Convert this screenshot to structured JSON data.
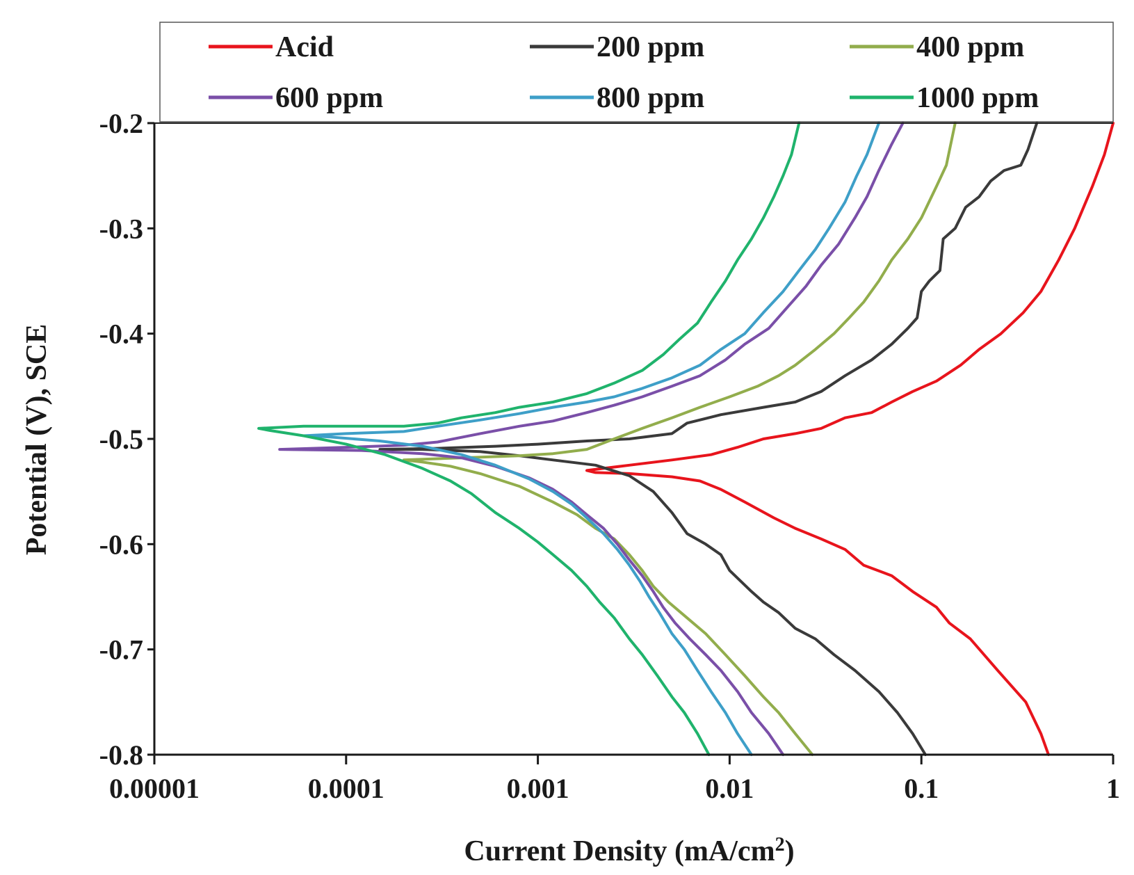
{
  "chart_data": {
    "type": "line",
    "title": "",
    "xlabel": "Current Density (mA/cm",
    "xlabel_sup": "2",
    "xlabel_close": ")",
    "ylabel": "Potential (V), SCE",
    "xscale": "log",
    "xlim": [
      1e-05,
      1
    ],
    "ylim": [
      -0.8,
      -0.2
    ],
    "x_ticks": [
      1e-05,
      0.0001,
      0.001,
      0.01,
      0.1,
      1
    ],
    "x_tick_labels": [
      "0.00001",
      "0.0001",
      "0.001",
      "0.01",
      "0.1",
      "1"
    ],
    "y_ticks": [
      -0.2,
      -0.3,
      -0.4,
      -0.5,
      -0.6,
      -0.7,
      -0.8
    ],
    "y_tick_labels": [
      "-0.2",
      "-0.3",
      "-0.4",
      "-0.5",
      "-0.6",
      "-0.7",
      "-0.8"
    ],
    "grid": false,
    "legend_position": "top",
    "series": [
      {
        "name": "Acid",
        "color": "#e8141c",
        "points": [
          [
            0.46,
            -0.8
          ],
          [
            0.42,
            -0.78
          ],
          [
            0.35,
            -0.75
          ],
          [
            0.25,
            -0.72
          ],
          [
            0.18,
            -0.69
          ],
          [
            0.14,
            -0.675
          ],
          [
            0.12,
            -0.66
          ],
          [
            0.09,
            -0.645
          ],
          [
            0.07,
            -0.63
          ],
          [
            0.05,
            -0.62
          ],
          [
            0.04,
            -0.605
          ],
          [
            0.03,
            -0.595
          ],
          [
            0.022,
            -0.585
          ],
          [
            0.017,
            -0.575
          ],
          [
            0.012,
            -0.56
          ],
          [
            0.009,
            -0.548
          ],
          [
            0.007,
            -0.54
          ],
          [
            0.005,
            -0.536
          ],
          [
            0.003,
            -0.533
          ],
          [
            0.002,
            -0.532
          ],
          [
            0.0018,
            -0.53
          ],
          [
            0.0022,
            -0.528
          ],
          [
            0.003,
            -0.525
          ],
          [
            0.005,
            -0.52
          ],
          [
            0.008,
            -0.515
          ],
          [
            0.011,
            -0.508
          ],
          [
            0.015,
            -0.5
          ],
          [
            0.022,
            -0.495
          ],
          [
            0.03,
            -0.49
          ],
          [
            0.04,
            -0.48
          ],
          [
            0.055,
            -0.475
          ],
          [
            0.07,
            -0.465
          ],
          [
            0.09,
            -0.455
          ],
          [
            0.12,
            -0.445
          ],
          [
            0.16,
            -0.43
          ],
          [
            0.2,
            -0.415
          ],
          [
            0.26,
            -0.4
          ],
          [
            0.34,
            -0.38
          ],
          [
            0.42,
            -0.36
          ],
          [
            0.52,
            -0.33
          ],
          [
            0.63,
            -0.3
          ],
          [
            0.78,
            -0.26
          ],
          [
            0.9,
            -0.23
          ],
          [
            1.0,
            -0.2
          ]
        ]
      },
      {
        "name": "200 ppm",
        "color": "#3a3a3a",
        "points": [
          [
            0.105,
            -0.8
          ],
          [
            0.09,
            -0.78
          ],
          [
            0.075,
            -0.76
          ],
          [
            0.06,
            -0.74
          ],
          [
            0.045,
            -0.72
          ],
          [
            0.035,
            -0.705
          ],
          [
            0.028,
            -0.69
          ],
          [
            0.022,
            -0.68
          ],
          [
            0.018,
            -0.665
          ],
          [
            0.015,
            -0.655
          ],
          [
            0.013,
            -0.645
          ],
          [
            0.01,
            -0.625
          ],
          [
            0.009,
            -0.61
          ],
          [
            0.0075,
            -0.6
          ],
          [
            0.006,
            -0.59
          ],
          [
            0.005,
            -0.57
          ],
          [
            0.004,
            -0.55
          ],
          [
            0.003,
            -0.535
          ],
          [
            0.002,
            -0.525
          ],
          [
            0.0012,
            -0.52
          ],
          [
            0.0008,
            -0.516
          ],
          [
            0.0005,
            -0.512
          ],
          [
            0.00025,
            -0.51
          ],
          [
            0.00015,
            -0.51
          ],
          [
            0.0003,
            -0.509
          ],
          [
            0.0006,
            -0.507
          ],
          [
            0.001,
            -0.505
          ],
          [
            0.0018,
            -0.502
          ],
          [
            0.003,
            -0.5
          ],
          [
            0.005,
            -0.495
          ],
          [
            0.006,
            -0.485
          ],
          [
            0.009,
            -0.477
          ],
          [
            0.015,
            -0.47
          ],
          [
            0.022,
            -0.465
          ],
          [
            0.03,
            -0.455
          ],
          [
            0.04,
            -0.44
          ],
          [
            0.055,
            -0.425
          ],
          [
            0.07,
            -0.41
          ],
          [
            0.085,
            -0.395
          ],
          [
            0.095,
            -0.385
          ],
          [
            0.1,
            -0.36
          ],
          [
            0.11,
            -0.35
          ],
          [
            0.125,
            -0.34
          ],
          [
            0.13,
            -0.31
          ],
          [
            0.15,
            -0.3
          ],
          [
            0.17,
            -0.28
          ],
          [
            0.2,
            -0.27
          ],
          [
            0.23,
            -0.255
          ],
          [
            0.27,
            -0.245
          ],
          [
            0.33,
            -0.24
          ],
          [
            0.36,
            -0.225
          ],
          [
            0.4,
            -0.2
          ]
        ]
      },
      {
        "name": "400 ppm",
        "color": "#92ad4c",
        "points": [
          [
            0.027,
            -0.8
          ],
          [
            0.022,
            -0.78
          ],
          [
            0.018,
            -0.76
          ],
          [
            0.015,
            -0.745
          ],
          [
            0.012,
            -0.725
          ],
          [
            0.0095,
            -0.705
          ],
          [
            0.0075,
            -0.685
          ],
          [
            0.006,
            -0.67
          ],
          [
            0.0048,
            -0.655
          ],
          [
            0.004,
            -0.64
          ],
          [
            0.0035,
            -0.625
          ],
          [
            0.003,
            -0.61
          ],
          [
            0.0025,
            -0.595
          ],
          [
            0.002,
            -0.585
          ],
          [
            0.0016,
            -0.572
          ],
          [
            0.0012,
            -0.56
          ],
          [
            0.0008,
            -0.545
          ],
          [
            0.0005,
            -0.533
          ],
          [
            0.00035,
            -0.526
          ],
          [
            0.00025,
            -0.522
          ],
          [
            0.0002,
            -0.52
          ],
          [
            0.0004,
            -0.518
          ],
          [
            0.0008,
            -0.516
          ],
          [
            0.0012,
            -0.514
          ],
          [
            0.0018,
            -0.51
          ],
          [
            0.0025,
            -0.5
          ],
          [
            0.0035,
            -0.49
          ],
          [
            0.005,
            -0.48
          ],
          [
            0.007,
            -0.47
          ],
          [
            0.01,
            -0.46
          ],
          [
            0.014,
            -0.45
          ],
          [
            0.018,
            -0.44
          ],
          [
            0.022,
            -0.43
          ],
          [
            0.028,
            -0.415
          ],
          [
            0.035,
            -0.4
          ],
          [
            0.042,
            -0.385
          ],
          [
            0.05,
            -0.37
          ],
          [
            0.06,
            -0.35
          ],
          [
            0.07,
            -0.33
          ],
          [
            0.085,
            -0.31
          ],
          [
            0.1,
            -0.29
          ],
          [
            0.12,
            -0.26
          ],
          [
            0.135,
            -0.24
          ],
          [
            0.15,
            -0.2
          ]
        ]
      },
      {
        "name": "600 ppm",
        "color": "#7a4fa8",
        "points": [
          [
            0.019,
            -0.8
          ],
          [
            0.016,
            -0.78
          ],
          [
            0.013,
            -0.76
          ],
          [
            0.011,
            -0.74
          ],
          [
            0.009,
            -0.72
          ],
          [
            0.0075,
            -0.705
          ],
          [
            0.0062,
            -0.69
          ],
          [
            0.0052,
            -0.675
          ],
          [
            0.0045,
            -0.66
          ],
          [
            0.004,
            -0.645
          ],
          [
            0.0035,
            -0.63
          ],
          [
            0.003,
            -0.615
          ],
          [
            0.0026,
            -0.6
          ],
          [
            0.0022,
            -0.585
          ],
          [
            0.0018,
            -0.572
          ],
          [
            0.0015,
            -0.56
          ],
          [
            0.0012,
            -0.548
          ],
          [
            0.0009,
            -0.537
          ],
          [
            0.0006,
            -0.526
          ],
          [
            0.0004,
            -0.518
          ],
          [
            0.00025,
            -0.514
          ],
          [
            0.00012,
            -0.511
          ],
          [
            4.5e-05,
            -0.51
          ],
          [
            0.0001,
            -0.508
          ],
          [
            0.0002,
            -0.506
          ],
          [
            0.0003,
            -0.503
          ],
          [
            0.0005,
            -0.495
          ],
          [
            0.0008,
            -0.488
          ],
          [
            0.0012,
            -0.483
          ],
          [
            0.0018,
            -0.475
          ],
          [
            0.0025,
            -0.468
          ],
          [
            0.0035,
            -0.46
          ],
          [
            0.005,
            -0.45
          ],
          [
            0.007,
            -0.44
          ],
          [
            0.0095,
            -0.425
          ],
          [
            0.012,
            -0.41
          ],
          [
            0.016,
            -0.395
          ],
          [
            0.02,
            -0.375
          ],
          [
            0.025,
            -0.355
          ],
          [
            0.03,
            -0.335
          ],
          [
            0.037,
            -0.315
          ],
          [
            0.045,
            -0.29
          ],
          [
            0.052,
            -0.27
          ],
          [
            0.06,
            -0.245
          ],
          [
            0.07,
            -0.22
          ],
          [
            0.08,
            -0.2
          ]
        ]
      },
      {
        "name": "800 ppm",
        "color": "#3e9fc8",
        "points": [
          [
            0.013,
            -0.8
          ],
          [
            0.011,
            -0.78
          ],
          [
            0.0095,
            -0.76
          ],
          [
            0.008,
            -0.74
          ],
          [
            0.0068,
            -0.72
          ],
          [
            0.0058,
            -0.7
          ],
          [
            0.005,
            -0.685
          ],
          [
            0.0043,
            -0.665
          ],
          [
            0.0038,
            -0.65
          ],
          [
            0.0034,
            -0.635
          ],
          [
            0.003,
            -0.62
          ],
          [
            0.0026,
            -0.605
          ],
          [
            0.0022,
            -0.59
          ],
          [
            0.0018,
            -0.575
          ],
          [
            0.0015,
            -0.562
          ],
          [
            0.0012,
            -0.55
          ],
          [
            0.0009,
            -0.538
          ],
          [
            0.0006,
            -0.525
          ],
          [
            0.0004,
            -0.515
          ],
          [
            0.00025,
            -0.507
          ],
          [
            0.00015,
            -0.502
          ],
          [
            8e-05,
            -0.498
          ],
          [
            6e-05,
            -0.497
          ],
          [
            0.0001,
            -0.495
          ],
          [
            0.0002,
            -0.493
          ],
          [
            0.0003,
            -0.488
          ],
          [
            0.0005,
            -0.482
          ],
          [
            0.0008,
            -0.476
          ],
          [
            0.0012,
            -0.47
          ],
          [
            0.0018,
            -0.465
          ],
          [
            0.0025,
            -0.46
          ],
          [
            0.0035,
            -0.452
          ],
          [
            0.005,
            -0.442
          ],
          [
            0.007,
            -0.43
          ],
          [
            0.009,
            -0.415
          ],
          [
            0.012,
            -0.4
          ],
          [
            0.015,
            -0.38
          ],
          [
            0.019,
            -0.36
          ],
          [
            0.023,
            -0.34
          ],
          [
            0.028,
            -0.32
          ],
          [
            0.033,
            -0.3
          ],
          [
            0.04,
            -0.275
          ],
          [
            0.046,
            -0.25
          ],
          [
            0.052,
            -0.23
          ],
          [
            0.06,
            -0.2
          ]
        ]
      },
      {
        "name": "1000 ppm",
        "color": "#1fb36c",
        "points": [
          [
            0.0078,
            -0.8
          ],
          [
            0.0068,
            -0.78
          ],
          [
            0.0058,
            -0.76
          ],
          [
            0.005,
            -0.745
          ],
          [
            0.0042,
            -0.725
          ],
          [
            0.0035,
            -0.705
          ],
          [
            0.003,
            -0.69
          ],
          [
            0.0025,
            -0.67
          ],
          [
            0.0021,
            -0.655
          ],
          [
            0.0018,
            -0.64
          ],
          [
            0.0015,
            -0.625
          ],
          [
            0.0012,
            -0.61
          ],
          [
            0.001,
            -0.598
          ],
          [
            0.0008,
            -0.585
          ],
          [
            0.0006,
            -0.57
          ],
          [
            0.00045,
            -0.552
          ],
          [
            0.00035,
            -0.54
          ],
          [
            0.00025,
            -0.528
          ],
          [
            0.00016,
            -0.515
          ],
          [
            0.0001,
            -0.505
          ],
          [
            6e-05,
            -0.497
          ],
          [
            4e-05,
            -0.492
          ],
          [
            3.5e-05,
            -0.49
          ],
          [
            6e-05,
            -0.488
          ],
          [
            0.0001,
            -0.488
          ],
          [
            0.0002,
            -0.488
          ],
          [
            0.0003,
            -0.485
          ],
          [
            0.0004,
            -0.48
          ],
          [
            0.0006,
            -0.475
          ],
          [
            0.0008,
            -0.47
          ],
          [
            0.0012,
            -0.465
          ],
          [
            0.0018,
            -0.457
          ],
          [
            0.0025,
            -0.447
          ],
          [
            0.0035,
            -0.435
          ],
          [
            0.0045,
            -0.42
          ],
          [
            0.0055,
            -0.405
          ],
          [
            0.0068,
            -0.39
          ],
          [
            0.008,
            -0.37
          ],
          [
            0.0095,
            -0.35
          ],
          [
            0.011,
            -0.33
          ],
          [
            0.013,
            -0.31
          ],
          [
            0.015,
            -0.29
          ],
          [
            0.017,
            -0.27
          ],
          [
            0.019,
            -0.25
          ],
          [
            0.021,
            -0.23
          ],
          [
            0.023,
            -0.2
          ]
        ]
      }
    ]
  }
}
